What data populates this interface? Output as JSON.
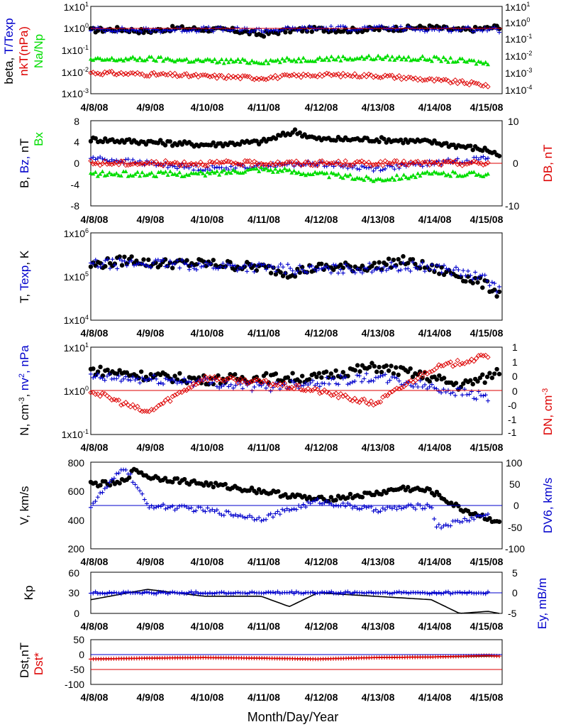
{
  "colors": {
    "black": "#000000",
    "blue": "#0000cc",
    "red": "#dd0000",
    "green": "#00dd00"
  },
  "xaxis": {
    "label": "Month/Day/Year",
    "ticks": [
      "4/8/08",
      "4/9/08",
      "4/10/08",
      "4/11/08",
      "4/12/08",
      "4/13/08",
      "4/14/08",
      "4/15/08"
    ]
  },
  "panels": {
    "p1": {
      "left_label": [
        "beta, ",
        "T/Texp"
      ],
      "left_label2": [
        "nkT(nPa)"
      ],
      "left_label3": [
        "Na/Np"
      ],
      "left_ticks": [
        {
          "base": "1x10",
          "exp": "-3"
        },
        {
          "base": "1x10",
          "exp": "-2"
        },
        {
          "base": "1x10",
          "exp": "-1"
        },
        {
          "base": "1x10",
          "exp": "0"
        },
        {
          "base": "1x10",
          "exp": "1"
        }
      ],
      "right_ticks": [
        {
          "base": "1x10",
          "exp": "-4"
        },
        {
          "base": "1x10",
          "exp": "-3"
        },
        {
          "base": "1x10",
          "exp": "-2"
        },
        {
          "base": "1x10",
          "exp": "-1"
        },
        {
          "base": "1x10",
          "exp": "0"
        },
        {
          "base": "1x10",
          "exp": "1"
        }
      ]
    },
    "p2": {
      "left_label": "B, ",
      "left_label_bz": "Bz, ",
      "left_label_nt": "nT",
      "left_label_bx": "Bx",
      "right_label": "DB, nT",
      "left_ticks": [
        "-8",
        "-4",
        "0",
        "4",
        "8"
      ],
      "right_ticks": [
        "-10",
        "0",
        "10"
      ]
    },
    "p3": {
      "left_label": [
        "T, ",
        "Texp",
        ", K"
      ],
      "left_ticks": [
        {
          "base": "1x10",
          "exp": "4"
        },
        {
          "base": "1x10",
          "exp": "5"
        },
        {
          "base": "1x10",
          "exp": "6"
        }
      ]
    },
    "p4": {
      "left_label": "N, cm",
      "left_label_mid": ", ",
      "left_label_nv": "nv",
      "left_label_end": ", nPa",
      "right_label": "DN, cm",
      "left_ticks": [
        {
          "base": "1x10",
          "exp": "-1"
        },
        {
          "base": "1x10",
          "exp": "0"
        },
        {
          "base": "1x10",
          "exp": "1"
        }
      ],
      "right_ticks": [
        "-1",
        "-1",
        "-0",
        "0",
        "0",
        "1",
        "1"
      ]
    },
    "p5": {
      "left_label": "V, km/s",
      "right_label": "DV6, km/s",
      "left_ticks": [
        "200",
        "400",
        "600",
        "800"
      ],
      "right_ticks": [
        "-100",
        "-50",
        "0",
        "50",
        "100"
      ]
    },
    "p6": {
      "left_label": "Kp",
      "right_label": "Ey, mB/m",
      "left_ticks": [
        "0",
        "30",
        "60"
      ],
      "right_ticks": [
        "-5",
        "0",
        "5"
      ]
    },
    "p7": {
      "left_label": "Dst,nT",
      "left_label2": "Dst*",
      "left_ticks": [
        "-100",
        "-50",
        "0",
        "50"
      ]
    }
  },
  "chart_data": [
    {
      "type": "scatter",
      "panel": "beta, T/Texp, nkT(nPa), Na/Np",
      "yscale": "log",
      "ylim_left": [
        0.001,
        10
      ],
      "ylim_right": [
        0.0001,
        10
      ],
      "series": [
        {
          "name": "beta",
          "color": "#000000",
          "x": [
            0,
            0.5,
            1,
            1.5,
            2,
            2.5,
            3,
            3.5,
            4,
            4.5,
            5,
            5.5,
            6,
            6.5,
            7,
            7.2
          ],
          "y": [
            0.8,
            0.9,
            0.7,
            1.0,
            0.9,
            0.8,
            0.5,
            0.8,
            0.9,
            0.8,
            0.9,
            1.0,
            1.1,
            0.8,
            1.0,
            1.2
          ]
        },
        {
          "name": "T/Texp",
          "color": "#0000cc",
          "x": [
            0,
            1,
            2,
            3,
            4,
            5,
            6,
            7,
            7.2
          ],
          "y": [
            0.9,
            0.8,
            0.9,
            0.8,
            1.0,
            1.0,
            0.9,
            0.9,
            0.8
          ]
        },
        {
          "name": "nkT(nPa)",
          "color": "#dd0000",
          "axis": "right",
          "x": [
            0,
            1,
            2,
            3,
            4,
            5,
            6,
            7
          ],
          "y": [
            0.0016,
            0.0013,
            0.001,
            0.0008,
            0.0012,
            0.0011,
            0.0006,
            0.0003
          ]
        },
        {
          "name": "Na/Np",
          "color": "#00dd00",
          "x": [
            0,
            1,
            2,
            3,
            4,
            5,
            6,
            7
          ],
          "y": [
            0.035,
            0.04,
            0.032,
            0.03,
            0.04,
            0.045,
            0.04,
            0.025
          ]
        }
      ]
    },
    {
      "type": "scatter",
      "panel": "B, Bz, nT, Bx, DB",
      "ylim_left": [
        -8,
        8
      ],
      "ylim_right": [
        -10,
        10
      ],
      "series": [
        {
          "name": "B",
          "color": "#000000",
          "x": [
            0,
            1,
            2,
            3,
            3.6,
            4,
            5,
            6,
            7,
            7.2
          ],
          "y": [
            4.5,
            4,
            3.5,
            4,
            6,
            4.5,
            4.5,
            4,
            2.5,
            1.5
          ]
        },
        {
          "name": "Bz",
          "color": "#0000cc",
          "x": [
            0,
            1,
            2,
            3,
            4,
            5,
            6,
            7
          ],
          "y": [
            1,
            0,
            -1,
            -0.5,
            0,
            -1,
            0,
            1
          ]
        },
        {
          "name": "Bx",
          "color": "#00dd00",
          "x": [
            0,
            1,
            2,
            3,
            4,
            5,
            6,
            7
          ],
          "y": [
            -2,
            -2,
            -2,
            -1,
            -2,
            -3,
            -2,
            -2
          ]
        },
        {
          "name": "DB",
          "color": "#dd0000",
          "axis": "right",
          "x": [
            0,
            1,
            2,
            3,
            4,
            5,
            6,
            7
          ],
          "y": [
            0,
            0,
            0,
            0,
            0,
            0,
            0,
            0
          ]
        }
      ]
    },
    {
      "type": "scatter",
      "panel": "T, Texp, K",
      "yscale": "log",
      "ylim": [
        10000,
        1000000
      ],
      "series": [
        {
          "name": "T",
          "color": "#000000",
          "x": [
            0,
            0.8,
            1,
            2,
            3,
            3.5,
            4,
            5,
            5.5,
            6,
            7,
            7.2
          ],
          "y": [
            180000,
            250000,
            200000,
            200000,
            160000,
            120000,
            160000,
            170000,
            230000,
            150000,
            60000,
            40000
          ]
        },
        {
          "name": "Texp",
          "color": "#0000cc",
          "x": [
            0,
            1,
            2,
            3,
            4,
            5,
            6,
            7,
            7.2
          ],
          "y": [
            190000,
            200000,
            180000,
            160000,
            140000,
            160000,
            170000,
            80000,
            50000
          ]
        }
      ]
    },
    {
      "type": "scatter",
      "panel": "N, nv2, nPa, DN",
      "yscale": "log",
      "ylim_left": [
        0.1,
        10
      ],
      "ylim_right": [
        -1,
        1
      ],
      "series": [
        {
          "name": "N",
          "color": "#000000",
          "x": [
            0,
            1,
            2,
            3,
            4,
            5,
            6,
            6.5,
            7,
            7.2
          ],
          "y": [
            3,
            2.2,
            1.8,
            2,
            2,
            3.5,
            2,
            1.3,
            2,
            3
          ]
        },
        {
          "name": "nv2",
          "color": "#0000cc",
          "x": [
            0,
            1,
            2,
            3,
            4,
            5,
            6,
            7
          ],
          "y": [
            2,
            1.8,
            1.6,
            1.2,
            1.6,
            2,
            1.2,
            0.7
          ]
        },
        {
          "name": "DN",
          "color": "#dd0000",
          "axis": "right",
          "x": [
            0,
            1,
            2,
            3,
            4,
            5,
            6,
            7
          ],
          "y": [
            0,
            -0.5,
            0.3,
            0.2,
            0,
            -0.3,
            0.5,
            0.8
          ]
        }
      ]
    },
    {
      "type": "scatter",
      "panel": "V, DV6",
      "ylim_left": [
        200,
        800
      ],
      "ylim_right": [
        -100,
        100
      ],
      "series": [
        {
          "name": "V",
          "color": "#000000",
          "x": [
            0,
            0.5,
            0.8,
            1,
            2,
            3,
            4,
            5,
            5.5,
            6,
            6.5,
            7,
            7.2
          ],
          "y": [
            650,
            650,
            750,
            700,
            650,
            600,
            540,
            580,
            620,
            600,
            480,
            410,
            390
          ]
        },
        {
          "name": "DV6",
          "color": "#0000cc",
          "axis": "right",
          "x": [
            0,
            0.6,
            1,
            2,
            3,
            4,
            5,
            6,
            6.1,
            7
          ],
          "y": [
            0,
            90,
            0,
            -10,
            -30,
            10,
            -10,
            0,
            -50,
            -20
          ]
        }
      ]
    },
    {
      "type": "line",
      "panel": "Kp, Ey",
      "ylim_left": [
        0,
        60
      ],
      "ylim_right": [
        -5,
        5
      ],
      "series": [
        {
          "name": "Kp",
          "color": "#000000",
          "x": [
            0,
            1,
            2,
            3,
            3.5,
            4,
            5,
            6,
            6.5,
            7,
            7.2
          ],
          "y": [
            20,
            35,
            25,
            25,
            10,
            30,
            25,
            20,
            0,
            3,
            0
          ]
        },
        {
          "name": "Ey",
          "color": "#0000cc",
          "axis": "right",
          "x": [
            0,
            1,
            2,
            3,
            4,
            5,
            6,
            7
          ],
          "y": [
            0,
            0,
            0,
            0,
            0,
            0,
            0,
            0
          ]
        }
      ]
    },
    {
      "type": "line",
      "panel": "Dst, Dst*",
      "ylim": [
        -100,
        50
      ],
      "series": [
        {
          "name": "Dst",
          "color": "#000000",
          "x": [
            0,
            1,
            2,
            3,
            4,
            5,
            6,
            7,
            7.2
          ],
          "y": [
            -15,
            -12,
            -10,
            -12,
            -15,
            -10,
            -8,
            -5,
            -5
          ]
        },
        {
          "name": "Dst*",
          "color": "#dd0000",
          "x": [
            0,
            1,
            2,
            3,
            4,
            5,
            6,
            7,
            7.2
          ],
          "y": [
            -15,
            -12,
            -10,
            -12,
            -15,
            -10,
            -8,
            -3,
            -5
          ]
        }
      ]
    }
  ]
}
